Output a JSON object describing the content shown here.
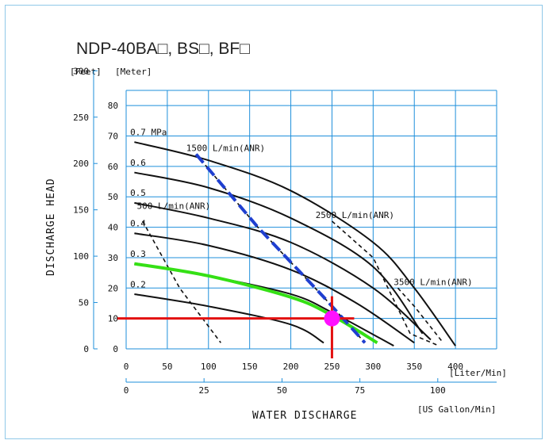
{
  "chart_data": {
    "type": "line",
    "title": "NDP-40BA□, BS□, BF□",
    "xlabel": "WATER DISCHARGE",
    "ylabel": "DISCHARGE HEAD",
    "x_unit_primary": "[Liter/Min]",
    "x_unit_secondary": "[US Gallon/Min]",
    "y_unit_feet": "[Feet]",
    "y_unit_meter": "[Meter]",
    "xlim": [
      0,
      450
    ],
    "ylim": [
      0,
      85
    ],
    "grid": true,
    "x_ticks": [
      {
        "v": 0,
        "label": "0"
      },
      {
        "v": 50,
        "label": "50"
      },
      {
        "v": 100,
        "label": "100"
      },
      {
        "v": 150,
        "label": "150"
      },
      {
        "v": 200,
        "label": "200"
      },
      {
        "v": 250,
        "label": "250"
      },
      {
        "v": 300,
        "label": "300"
      },
      {
        "v": 350,
        "label": "350"
      },
      {
        "v": 400,
        "label": "400"
      }
    ],
    "gallon_ticks": [
      {
        "v": 0,
        "label": "0"
      },
      {
        "v": 94.6,
        "label": "25"
      },
      {
        "v": 189.3,
        "label": "50"
      },
      {
        "v": 283.9,
        "label": "75"
      },
      {
        "v": 378.5,
        "label": "100"
      }
    ],
    "meter_ticks": [
      {
        "v": 0,
        "label": "0"
      },
      {
        "v": 10,
        "label": "10"
      },
      {
        "v": 20,
        "label": "20"
      },
      {
        "v": 30,
        "label": "30"
      },
      {
        "v": 40,
        "label": "40"
      },
      {
        "v": 50,
        "label": "50"
      },
      {
        "v": 60,
        "label": "60"
      },
      {
        "v": 70,
        "label": "70"
      },
      {
        "v": 80,
        "label": "80"
      }
    ],
    "feet_ticks": [
      {
        "v": 0,
        "label": "0"
      },
      {
        "v": 15.24,
        "label": "50"
      },
      {
        "v": 30.48,
        "label": "100"
      },
      {
        "v": 45.72,
        "label": "150"
      },
      {
        "v": 60.96,
        "label": "200"
      },
      {
        "v": 76.2,
        "label": "250"
      },
      {
        "v": 91.44,
        "label": "300"
      }
    ],
    "series": [
      {
        "name": "0.7 MPa",
        "label_pos": [
          2,
          70
        ],
        "points": [
          [
            10,
            68
          ],
          [
            100,
            62
          ],
          [
            200,
            52
          ],
          [
            300,
            35
          ],
          [
            350,
            20
          ],
          [
            400,
            1
          ]
        ]
      },
      {
        "name": "0.6",
        "label_pos": [
          2,
          60
        ],
        "points": [
          [
            10,
            58
          ],
          [
            100,
            53
          ],
          [
            200,
            43
          ],
          [
            300,
            27
          ],
          [
            360,
            5
          ]
        ]
      },
      {
        "name": "0.5",
        "label_pos": [
          2,
          50
        ],
        "points": [
          [
            10,
            48
          ],
          [
            100,
            43
          ],
          [
            200,
            35
          ],
          [
            300,
            20
          ],
          [
            370,
            3
          ]
        ]
      },
      {
        "name": "0.4",
        "label_pos": [
          2,
          40
        ],
        "points": [
          [
            10,
            38
          ],
          [
            100,
            34
          ],
          [
            200,
            26
          ],
          [
            280,
            15
          ],
          [
            350,
            2
          ]
        ]
      },
      {
        "name": "0.3",
        "label_pos": [
          2,
          30
        ],
        "points": [
          [
            10,
            28
          ],
          [
            100,
            24
          ],
          [
            200,
            18
          ],
          [
            250,
            12
          ],
          [
            325,
            1
          ]
        ]
      },
      {
        "name": "0.2",
        "label_pos": [
          2,
          20
        ],
        "points": [
          [
            10,
            18
          ],
          [
            100,
            14
          ],
          [
            200,
            8
          ],
          [
            240,
            2
          ]
        ]
      }
    ],
    "air_lines": [
      {
        "label": "500 L/min(ANR)",
        "label_pos": [
          13,
          46
        ],
        "points": [
          [
            20,
            42
          ],
          [
            65,
            20
          ],
          [
            115,
            2
          ]
        ]
      },
      {
        "label": "1500 L/min(ANR)",
        "label_pos": [
          73,
          65
        ],
        "points": [
          [
            85,
            64
          ],
          [
            160,
            40
          ],
          [
            240,
            17
          ],
          [
            290,
            2
          ]
        ]
      },
      {
        "label": "2500 L/min(ANR)",
        "label_pos": [
          230,
          43
        ],
        "points": [
          [
            250,
            42
          ],
          [
            300,
            30
          ],
          [
            345,
            5
          ],
          [
            380,
            1
          ]
        ]
      },
      {
        "label": "3500 L/min(ANR)",
        "label_pos": [
          325,
          21
        ],
        "points": [
          [
            330,
            20
          ],
          [
            350,
            14
          ],
          [
            385,
            2
          ]
        ]
      }
    ],
    "highlight_air_line": {
      "label": "1500 L/min(ANR)",
      "points": [
        [
          85,
          64
        ],
        [
          160,
          40
        ],
        [
          240,
          17
        ],
        [
          290,
          2
        ]
      ]
    },
    "highlight_pressure_curve": {
      "points": [
        [
          10,
          28
        ],
        [
          100,
          24
        ],
        [
          200,
          17
        ],
        [
          250,
          11
        ],
        [
          305,
          2
        ]
      ]
    },
    "operating_point": {
      "x": 250,
      "y": 10
    },
    "colors": {
      "grid": "#1e8fdb",
      "curve": "#111111",
      "air_line": "#111111",
      "blue_dash": "#1f3fd0",
      "green": "#35e015",
      "crosshair": "#e31111",
      "point": "#ff10ff",
      "frame": "#8fc8e8"
    }
  }
}
